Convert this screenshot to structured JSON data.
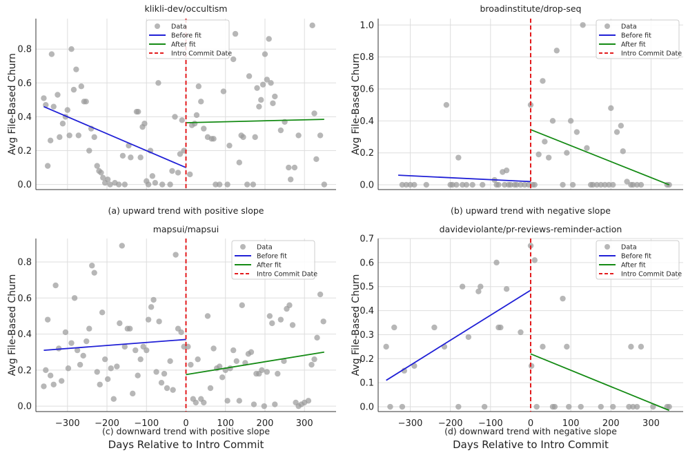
{
  "figure": {
    "xlabel": "Days Relative to Intro Commit",
    "ylabel": "Avg File-Based Churn",
    "legend": [
      "Data",
      "Before fit",
      "After fit",
      "Intro Commit Date"
    ]
  },
  "colors": {
    "data": "#999999",
    "before": "#1f1fd6",
    "after": "#138a13",
    "intro": "#e31a1c",
    "grid": "#dddddd",
    "text": "#222222"
  },
  "chart_data": [
    {
      "type": "scatter",
      "title": "klikli-dev/occultism",
      "caption": "(a) upward trend with positive slope",
      "xlim": [
        -380,
        380
      ],
      "ylim": [
        -0.03,
        0.98
      ],
      "xticks": [
        -300,
        -200,
        -100,
        0,
        100,
        200,
        300
      ],
      "yticks": [
        0.0,
        0.2,
        0.4,
        0.6,
        0.8
      ],
      "ytick_labels": [
        "0.0",
        "0.2",
        "0.4",
        "0.6",
        "0.8"
      ],
      "show_xtick_labels": false,
      "points": [
        [
          -360,
          0.51
        ],
        [
          -355,
          0.47
        ],
        [
          -350,
          0.11
        ],
        [
          -343,
          0.26
        ],
        [
          -340,
          0.77
        ],
        [
          -335,
          0.46
        ],
        [
          -325,
          0.53
        ],
        [
          -320,
          0.28
        ],
        [
          -312,
          0.36
        ],
        [
          -305,
          0.4
        ],
        [
          -300,
          0.44
        ],
        [
          -295,
          0.29
        ],
        [
          -290,
          0.8
        ],
        [
          -284,
          0.56
        ],
        [
          -278,
          0.68
        ],
        [
          -272,
          0.29
        ],
        [
          -265,
          0.58
        ],
        [
          -258,
          0.49
        ],
        [
          -253,
          0.49
        ],
        [
          -245,
          0.2
        ],
        [
          -240,
          0.33
        ],
        [
          -232,
          0.28
        ],
        [
          -225,
          0.11
        ],
        [
          -220,
          0.08
        ],
        [
          -215,
          0.07
        ],
        [
          -210,
          0.04
        ],
        [
          -205,
          0.01
        ],
        [
          -198,
          0.03
        ],
        [
          -192,
          0.0
        ],
        [
          -180,
          0.01
        ],
        [
          -170,
          0.0
        ],
        [
          -160,
          0.17
        ],
        [
          -155,
          0.0
        ],
        [
          -145,
          0.23
        ],
        [
          -140,
          0.16
        ],
        [
          -125,
          0.43
        ],
        [
          -121,
          0.43
        ],
        [
          -115,
          0.16
        ],
        [
          -110,
          0.34
        ],
        [
          -105,
          0.36
        ],
        [
          -100,
          0.02
        ],
        [
          -95,
          0.0
        ],
        [
          -90,
          0.2
        ],
        [
          -85,
          0.05
        ],
        [
          -78,
          0.01
        ],
        [
          -70,
          0.6
        ],
        [
          -60,
          0.0
        ],
        [
          -40,
          0.0
        ],
        [
          -35,
          0.08
        ],
        [
          -28,
          0.4
        ],
        [
          -20,
          0.07
        ],
        [
          -15,
          0.18
        ],
        [
          -10,
          0.38
        ],
        [
          -5,
          0.2
        ],
        [
          10,
          0.06
        ],
        [
          15,
          0.35
        ],
        [
          22,
          0.36
        ],
        [
          27,
          0.41
        ],
        [
          32,
          0.58
        ],
        [
          38,
          0.49
        ],
        [
          45,
          0.33
        ],
        [
          55,
          0.28
        ],
        [
          65,
          0.27
        ],
        [
          70,
          0.27
        ],
        [
          75,
          0.0
        ],
        [
          85,
          0.0
        ],
        [
          95,
          0.55
        ],
        [
          105,
          0.0
        ],
        [
          110,
          0.23
        ],
        [
          120,
          0.74
        ],
        [
          125,
          0.89
        ],
        [
          135,
          0.13
        ],
        [
          140,
          0.29
        ],
        [
          145,
          0.28
        ],
        [
          155,
          0.0
        ],
        [
          160,
          0.64
        ],
        [
          170,
          0.0
        ],
        [
          175,
          0.28
        ],
        [
          180,
          0.57
        ],
        [
          185,
          0.46
        ],
        [
          190,
          0.5
        ],
        [
          195,
          0.59
        ],
        [
          200,
          0.77
        ],
        [
          205,
          0.62
        ],
        [
          210,
          0.86
        ],
        [
          215,
          0.6
        ],
        [
          220,
          0.48
        ],
        [
          225,
          0.52
        ],
        [
          240,
          0.32
        ],
        [
          250,
          0.37
        ],
        [
          260,
          0.1
        ],
        [
          265,
          0.03
        ],
        [
          275,
          0.1
        ],
        [
          285,
          0.29
        ],
        [
          320,
          0.94
        ],
        [
          325,
          0.42
        ],
        [
          330,
          0.15
        ],
        [
          340,
          0.29
        ],
        [
          350,
          0.0
        ]
      ],
      "before_fit": [
        [
          -360,
          0.46
        ],
        [
          0,
          0.1
        ]
      ],
      "after_fit": [
        [
          0,
          0.365
        ],
        [
          350,
          0.385
        ]
      ],
      "show_ylabel": true,
      "show_xlabel": false
    },
    {
      "type": "scatter",
      "title": "broadinstitute/drop-seq",
      "caption": "(b) upward trend with negative slope",
      "xlim": [
        -380,
        380
      ],
      "ylim": [
        -0.03,
        1.04
      ],
      "xticks": [
        -300,
        -200,
        -100,
        0,
        100,
        200,
        300
      ],
      "yticks": [
        0.0,
        0.2,
        0.4,
        0.6,
        0.8,
        1.0
      ],
      "ytick_labels": [
        "0.0",
        "0.2",
        "0.4",
        "0.6",
        "0.8",
        "1.0"
      ],
      "show_xtick_labels": false,
      "points": [
        [
          -320,
          0.0
        ],
        [
          -310,
          0.0
        ],
        [
          -300,
          0.0
        ],
        [
          -290,
          0.0
        ],
        [
          -260,
          0.0
        ],
        [
          -210,
          0.5
        ],
        [
          -200,
          0.0
        ],
        [
          -195,
          0.0
        ],
        [
          -185,
          0.0
        ],
        [
          -180,
          0.17
        ],
        [
          -170,
          0.0
        ],
        [
          -160,
          0.0
        ],
        [
          -145,
          0.0
        ],
        [
          -120,
          0.0
        ],
        [
          -90,
          0.03
        ],
        [
          -85,
          0.0
        ],
        [
          -80,
          0.0
        ],
        [
          -70,
          0.08
        ],
        [
          -65,
          0.0
        ],
        [
          -60,
          0.09
        ],
        [
          -55,
          0.0
        ],
        [
          -50,
          0.0
        ],
        [
          -40,
          0.0
        ],
        [
          -35,
          0.0
        ],
        [
          -25,
          0.0
        ],
        [
          -15,
          0.0
        ],
        [
          -5,
          0.0
        ],
        [
          0,
          0.5
        ],
        [
          5,
          0.0
        ],
        [
          10,
          0.0
        ],
        [
          20,
          0.19
        ],
        [
          30,
          0.65
        ],
        [
          35,
          0.27
        ],
        [
          45,
          0.17
        ],
        [
          55,
          0.4
        ],
        [
          65,
          0.84
        ],
        [
          80,
          0.0
        ],
        [
          90,
          0.2
        ],
        [
          100,
          0.4
        ],
        [
          105,
          0.0
        ],
        [
          115,
          0.33
        ],
        [
          130,
          1.0
        ],
        [
          140,
          0.23
        ],
        [
          150,
          0.0
        ],
        [
          155,
          0.0
        ],
        [
          165,
          0.0
        ],
        [
          175,
          0.0
        ],
        [
          185,
          0.0
        ],
        [
          195,
          0.0
        ],
        [
          200,
          0.48
        ],
        [
          205,
          0.0
        ],
        [
          215,
          0.33
        ],
        [
          225,
          0.37
        ],
        [
          230,
          0.21
        ],
        [
          240,
          0.02
        ],
        [
          250,
          0.0
        ],
        [
          255,
          0.0
        ],
        [
          265,
          0.0
        ],
        [
          275,
          0.0
        ],
        [
          340,
          0.0
        ],
        [
          345,
          0.0
        ]
      ],
      "before_fit": [
        [
          -330,
          0.06
        ],
        [
          0,
          0.02
        ]
      ],
      "after_fit": [
        [
          0,
          0.345
        ],
        [
          345,
          0.0
        ]
      ],
      "show_ylabel": true,
      "show_xlabel": false
    },
    {
      "type": "scatter",
      "title": "mapsui/mapsui",
      "caption": "(c) downward trend with positive slope",
      "xlim": [
        -380,
        380
      ],
      "ylim": [
        -0.03,
        0.93
      ],
      "xticks": [
        -300,
        -200,
        -100,
        0,
        100,
        200,
        300
      ],
      "xtick_labels": [
        "−300",
        "−200",
        "−100",
        "0",
        "100",
        "200",
        "300"
      ],
      "yticks": [
        0.0,
        0.2,
        0.4,
        0.6,
        0.8
      ],
      "ytick_labels": [
        "0.0",
        "0.2",
        "0.4",
        "0.6",
        "0.8"
      ],
      "show_xtick_labels": true,
      "points": [
        [
          -360,
          0.11
        ],
        [
          -355,
          0.2
        ],
        [
          -350,
          0.48
        ],
        [
          -343,
          0.17
        ],
        [
          -335,
          0.12
        ],
        [
          -330,
          0.67
        ],
        [
          -322,
          0.32
        ],
        [
          -315,
          0.14
        ],
        [
          -305,
          0.41
        ],
        [
          -298,
          0.21
        ],
        [
          -290,
          0.35
        ],
        [
          -282,
          0.6
        ],
        [
          -275,
          0.31
        ],
        [
          -268,
          0.23
        ],
        [
          -260,
          0.28
        ],
        [
          -252,
          0.36
        ],
        [
          -245,
          0.43
        ],
        [
          -238,
          0.78
        ],
        [
          -232,
          0.74
        ],
        [
          -225,
          0.19
        ],
        [
          -218,
          0.12
        ],
        [
          -212,
          0.52
        ],
        [
          -205,
          0.26
        ],
        [
          -198,
          0.15
        ],
        [
          -190,
          0.21
        ],
        [
          -183,
          0.04
        ],
        [
          -175,
          0.22
        ],
        [
          -168,
          0.46
        ],
        [
          -162,
          0.89
        ],
        [
          -155,
          0.33
        ],
        [
          -148,
          0.43
        ],
        [
          -142,
          0.43
        ],
        [
          -135,
          0.07
        ],
        [
          -128,
          0.31
        ],
        [
          -122,
          0.17
        ],
        [
          -115,
          0.26
        ],
        [
          -108,
          0.33
        ],
        [
          -100,
          0.31
        ],
        [
          -95,
          0.48
        ],
        [
          -88,
          0.55
        ],
        [
          -82,
          0.59
        ],
        [
          -75,
          0.19
        ],
        [
          -68,
          0.47
        ],
        [
          -62,
          0.13
        ],
        [
          -55,
          0.18
        ],
        [
          -48,
          0.1
        ],
        [
          -40,
          0.25
        ],
        [
          -33,
          0.09
        ],
        [
          -26,
          0.84
        ],
        [
          -20,
          0.43
        ],
        [
          -12,
          0.41
        ],
        [
          -5,
          0.33
        ],
        [
          5,
          0.33
        ],
        [
          12,
          0.23
        ],
        [
          18,
          0.04
        ],
        [
          25,
          0.02
        ],
        [
          30,
          0.26
        ],
        [
          38,
          0.04
        ],
        [
          45,
          0.02
        ],
        [
          55,
          0.5
        ],
        [
          62,
          0.1
        ],
        [
          70,
          0.32
        ],
        [
          78,
          0.21
        ],
        [
          85,
          0.22
        ],
        [
          92,
          0.16
        ],
        [
          100,
          0.2
        ],
        [
          105,
          0.03
        ],
        [
          112,
          0.21
        ],
        [
          120,
          0.31
        ],
        [
          128,
          0.25
        ],
        [
          135,
          0.03
        ],
        [
          142,
          0.56
        ],
        [
          150,
          0.24
        ],
        [
          158,
          0.29
        ],
        [
          165,
          0.3
        ],
        [
          172,
          0.01
        ],
        [
          178,
          0.18
        ],
        [
          185,
          0.18
        ],
        [
          192,
          0.2
        ],
        [
          198,
          0.0
        ],
        [
          205,
          0.19
        ],
        [
          212,
          0.5
        ],
        [
          218,
          0.46
        ],
        [
          225,
          0.01
        ],
        [
          232,
          0.18
        ],
        [
          240,
          0.48
        ],
        [
          248,
          0.25
        ],
        [
          255,
          0.54
        ],
        [
          262,
          0.56
        ],
        [
          270,
          0.45
        ],
        [
          278,
          0.02
        ],
        [
          285,
          0.0
        ],
        [
          292,
          0.01
        ],
        [
          300,
          0.02
        ],
        [
          310,
          0.03
        ],
        [
          318,
          0.23
        ],
        [
          325,
          0.26
        ],
        [
          332,
          0.38
        ],
        [
          340,
          0.62
        ],
        [
          348,
          0.47
        ]
      ],
      "before_fit": [
        [
          -360,
          0.31
        ],
        [
          0,
          0.37
        ]
      ],
      "after_fit": [
        [
          0,
          0.175
        ],
        [
          350,
          0.3
        ]
      ],
      "show_ylabel": true,
      "show_xlabel": true
    },
    {
      "type": "scatter",
      "title": "davideviolante/pr-reviews-reminder-action",
      "caption": "(d) downward trend with negative slope",
      "xlim": [
        -380,
        380
      ],
      "ylim": [
        -0.02,
        0.7
      ],
      "xticks": [
        -300,
        -200,
        -100,
        0,
        100,
        200,
        300
      ],
      "xtick_labels": [
        "−300",
        "−200",
        "−100",
        "0",
        "100",
        "200",
        "300"
      ],
      "yticks": [
        0.0,
        0.1,
        0.2,
        0.3,
        0.4,
        0.5,
        0.6,
        0.7
      ],
      "ytick_labels": [
        "0.0",
        "0.1",
        "0.2",
        "0.3",
        "0.4",
        "0.5",
        "0.6",
        "0.7"
      ],
      "show_xtick_labels": true,
      "points": [
        [
          -360,
          0.25
        ],
        [
          -350,
          0.0
        ],
        [
          -340,
          0.33
        ],
        [
          -320,
          0.0
        ],
        [
          -315,
          0.15
        ],
        [
          -290,
          0.17
        ],
        [
          -240,
          0.33
        ],
        [
          -215,
          0.25
        ],
        [
          -180,
          0.0
        ],
        [
          -170,
          0.5
        ],
        [
          -155,
          0.29
        ],
        [
          -130,
          0.48
        ],
        [
          -125,
          0.5
        ],
        [
          -115,
          0.0
        ],
        [
          -85,
          0.6
        ],
        [
          -80,
          0.33
        ],
        [
          -75,
          0.33
        ],
        [
          -60,
          0.49
        ],
        [
          -25,
          0.31
        ],
        [
          0,
          0.67
        ],
        [
          2,
          0.17
        ],
        [
          10,
          0.61
        ],
        [
          15,
          0.0
        ],
        [
          30,
          0.25
        ],
        [
          55,
          0.0
        ],
        [
          60,
          0.0
        ],
        [
          80,
          0.45
        ],
        [
          90,
          0.25
        ],
        [
          95,
          0.0
        ],
        [
          125,
          0.0
        ],
        [
          175,
          0.0
        ],
        [
          205,
          0.0
        ],
        [
          245,
          0.0
        ],
        [
          250,
          0.25
        ],
        [
          255,
          0.0
        ],
        [
          265,
          0.0
        ],
        [
          275,
          0.25
        ],
        [
          305,
          0.0
        ],
        [
          340,
          0.0
        ],
        [
          345,
          0.0
        ]
      ],
      "before_fit": [
        [
          -360,
          0.11
        ],
        [
          0,
          0.485
        ]
      ],
      "after_fit": [
        [
          0,
          0.22
        ],
        [
          345,
          -0.015
        ]
      ],
      "show_ylabel": true,
      "show_xlabel": true
    }
  ]
}
